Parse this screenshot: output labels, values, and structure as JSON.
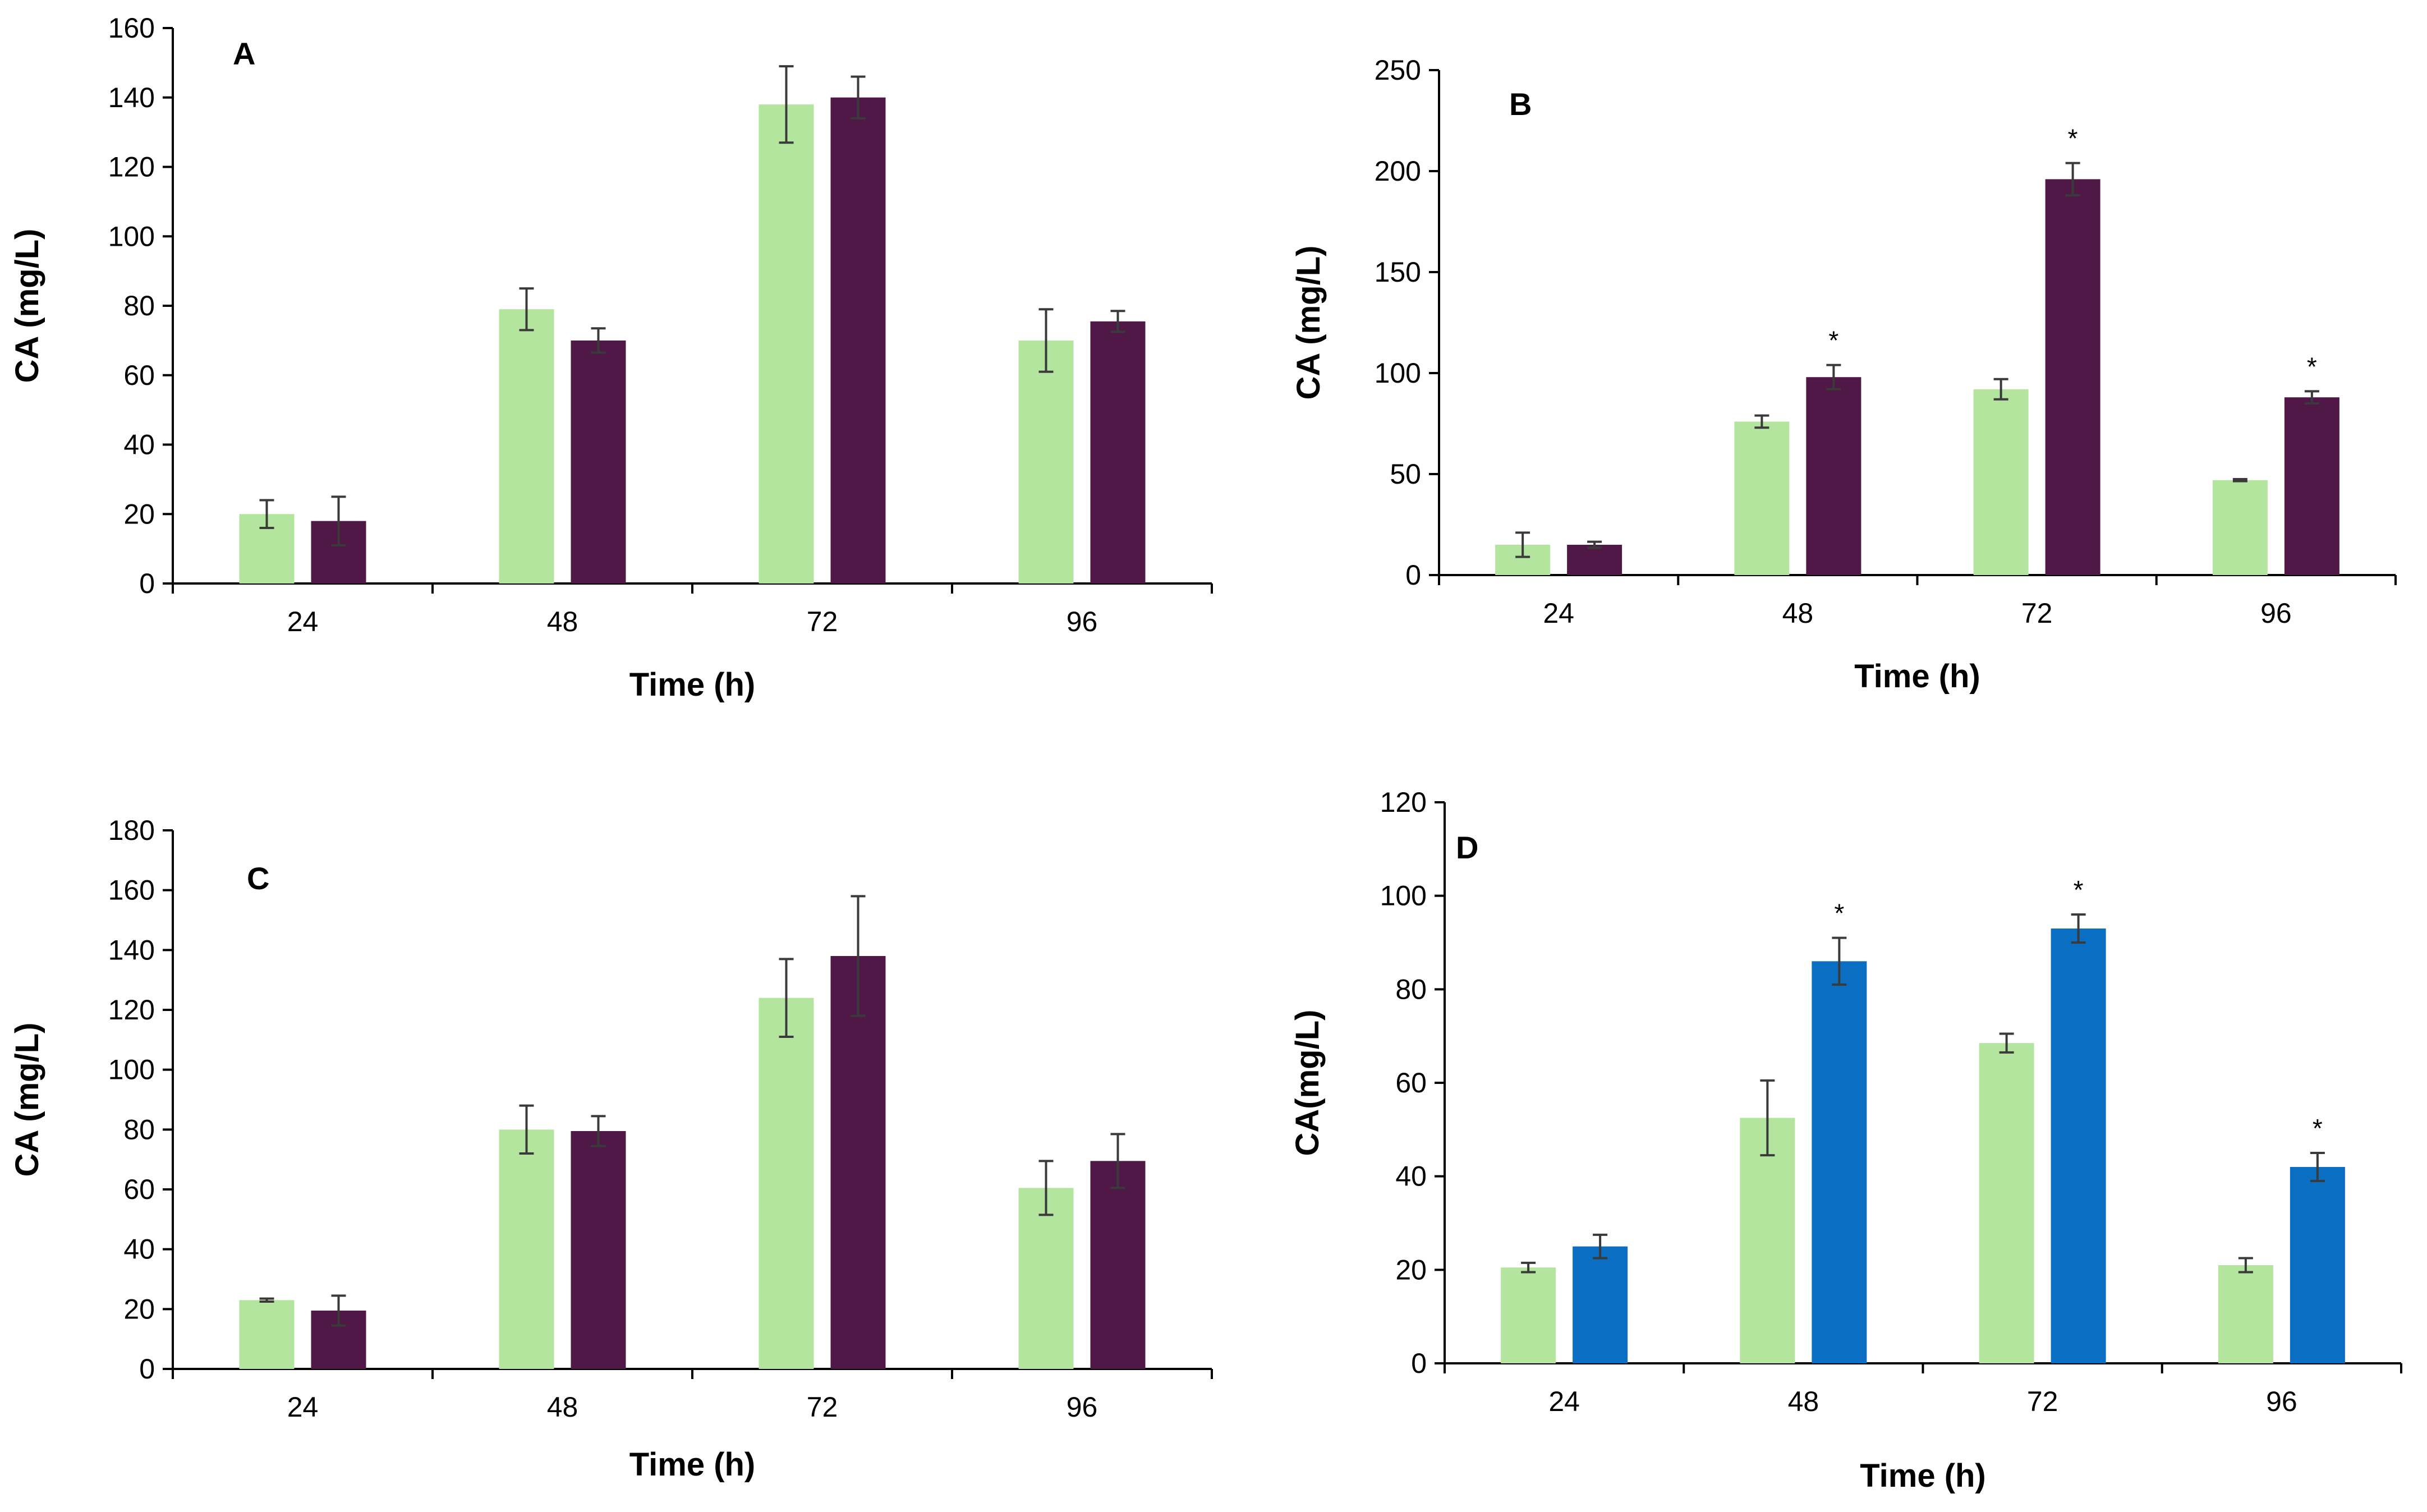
{
  "figure": {
    "panel_count": 4
  },
  "colors": {
    "light_green": "#b3e59f",
    "dark_purple": "#4f1846",
    "blue": "#0a6fc3",
    "error_bar": "#3a3a3a",
    "axis": "#000000"
  },
  "chart_data": [
    {
      "type": "bar",
      "panel_label": "A",
      "xlabel": "Time (h)",
      "ylabel": "CA (mg/L)",
      "categories": [
        "24",
        "48",
        "72",
        "96"
      ],
      "ylim": [
        0,
        160
      ],
      "yticks": [
        0,
        20,
        40,
        60,
        80,
        100,
        120,
        140,
        160
      ],
      "series": [
        {
          "name": "series-1",
          "color": "#b3e59f",
          "values": [
            20,
            79,
            138,
            70
          ],
          "errors": [
            4,
            6,
            11,
            9
          ]
        },
        {
          "name": "series-2",
          "color": "#4f1846",
          "values": [
            18,
            70,
            140,
            75.5
          ],
          "errors": [
            7,
            3.5,
            6,
            3
          ]
        }
      ],
      "annotations": []
    },
    {
      "type": "bar",
      "panel_label": "B",
      "xlabel": "Time (h)",
      "ylabel": "CA (mg/L)",
      "categories": [
        "24",
        "48",
        "72",
        "96"
      ],
      "ylim": [
        0,
        250
      ],
      "yticks": [
        0,
        50,
        100,
        150,
        200,
        250
      ],
      "series": [
        {
          "name": "series-1",
          "color": "#b3e59f",
          "values": [
            15,
            76,
            92,
            47
          ],
          "errors": [
            6,
            3,
            5,
            0.5
          ]
        },
        {
          "name": "series-2",
          "color": "#4f1846",
          "values": [
            15,
            98,
            196,
            88
          ],
          "errors": [
            1.5,
            6,
            8,
            3
          ]
        }
      ],
      "annotations": [
        {
          "series": 1,
          "category": 1,
          "text": "*"
        },
        {
          "series": 1,
          "category": 2,
          "text": "*"
        },
        {
          "series": 1,
          "category": 3,
          "text": "*"
        }
      ]
    },
    {
      "type": "bar",
      "panel_label": "C",
      "xlabel": "Time (h)",
      "ylabel": "CA (mg/L)",
      "categories": [
        "24",
        "48",
        "72",
        "96"
      ],
      "ylim": [
        0,
        180
      ],
      "yticks": [
        0,
        20,
        40,
        60,
        80,
        100,
        120,
        140,
        160,
        180
      ],
      "series": [
        {
          "name": "series-1",
          "color": "#b3e59f",
          "values": [
            23,
            80,
            124,
            60.5
          ],
          "errors": [
            0.5,
            8,
            13,
            9
          ]
        },
        {
          "name": "series-2",
          "color": "#4f1846",
          "values": [
            19.5,
            79.5,
            138,
            69.5
          ],
          "errors": [
            5,
            5,
            20,
            9
          ]
        }
      ],
      "annotations": []
    },
    {
      "type": "bar",
      "panel_label": "D",
      "xlabel": "Time (h)",
      "ylabel": "CA(mg/L)",
      "categories": [
        "24",
        "48",
        "72",
        "96"
      ],
      "ylim": [
        0,
        120
      ],
      "yticks": [
        0,
        20,
        40,
        60,
        80,
        100,
        120
      ],
      "series": [
        {
          "name": "series-1",
          "color": "#b3e59f",
          "values": [
            20.5,
            52.5,
            68.5,
            21
          ],
          "errors": [
            1,
            8,
            2,
            1.5
          ]
        },
        {
          "name": "series-2",
          "color": "#0a6fc3",
          "values": [
            25,
            86,
            93,
            42
          ],
          "errors": [
            2.5,
            5,
            3,
            3
          ]
        }
      ],
      "annotations": [
        {
          "series": 1,
          "category": 1,
          "text": "*"
        },
        {
          "series": 1,
          "category": 2,
          "text": "*"
        },
        {
          "series": 1,
          "category": 3,
          "text": "*"
        }
      ]
    }
  ]
}
